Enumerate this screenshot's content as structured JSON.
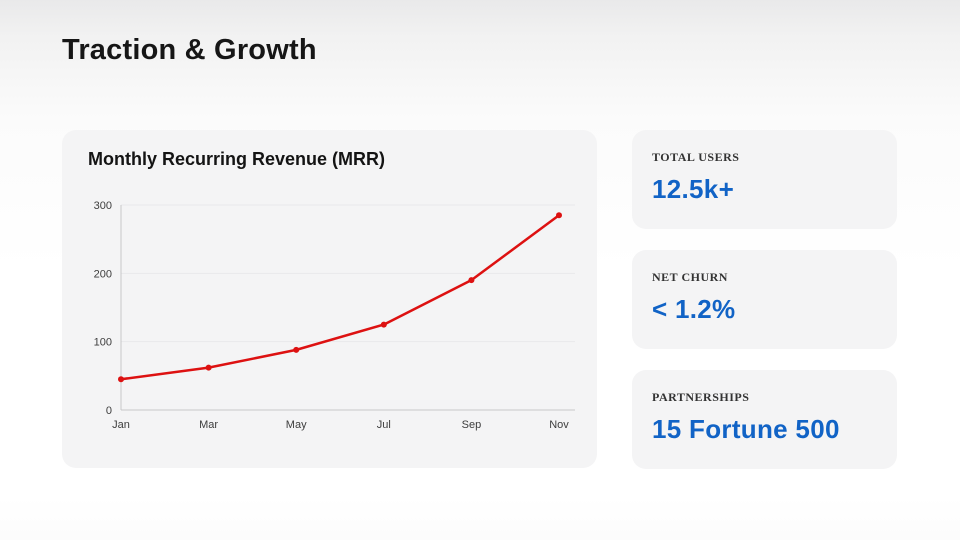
{
  "slide": {
    "title": "Traction & Growth"
  },
  "chart_card": {
    "title": "Monthly Recurring Revenue (MRR)"
  },
  "chart_data": {
    "type": "line",
    "title": "Monthly Recurring Revenue (MRR)",
    "categories": [
      "Jan",
      "Mar",
      "May",
      "Jul",
      "Sep",
      "Nov"
    ],
    "values": [
      45,
      62,
      88,
      125,
      190,
      285
    ],
    "xlabel": "",
    "ylabel": "",
    "ylim": [
      0,
      300
    ],
    "yticks": [
      0,
      100,
      200,
      300
    ],
    "grid": true,
    "legend": false,
    "line_color": "#dd1111",
    "marker": "dot"
  },
  "stats": [
    {
      "label": "TOTAL USERS",
      "value": "12.5k+"
    },
    {
      "label": "NET CHURN",
      "value": "< 1.2%"
    },
    {
      "label": "PARTNERSHIPS",
      "value": "15 Fortune 500"
    }
  ],
  "colors": {
    "accent_blue": "#1163c6",
    "line_red": "#dd1111",
    "card_background": "#f4f4f5",
    "axis": "#c7c7c9",
    "gridline": "#e9e9ea"
  }
}
